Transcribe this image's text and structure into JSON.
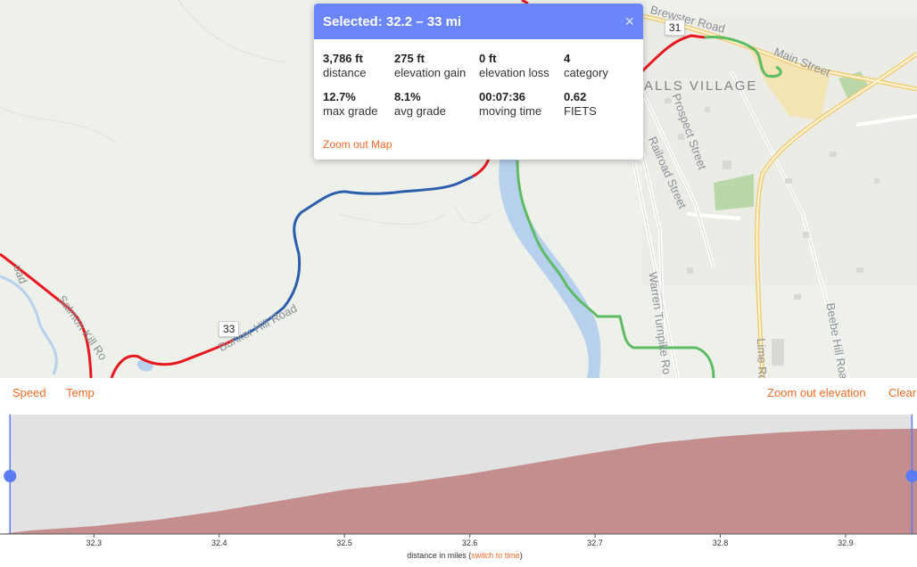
{
  "map": {
    "labels": {
      "town": "ALLS VILLAGE",
      "brewster": "Brewster Road",
      "main": "Main Street",
      "prospect": "Prospect Street",
      "railroad": "Railroad Street",
      "warren": "Warren Turnpike Ro",
      "beebe": "Beebe Hill Roa",
      "lime": "Lime Ro",
      "salmon": "Salmon Kill Ro",
      "bunker": "Bunker Hill Road",
      "road_left": "oad"
    },
    "markers": {
      "start": "31",
      "end": "33"
    }
  },
  "popup": {
    "title": "Selected: 32.2 – 33 mi",
    "close": "×",
    "stats": [
      {
        "value": "3,786 ft",
        "label": "distance"
      },
      {
        "value": "275 ft",
        "label": "elevation gain"
      },
      {
        "value": "0 ft",
        "label": "elevation loss"
      },
      {
        "value": "4",
        "label": "category"
      },
      {
        "value": "12.7%",
        "label": "max grade"
      },
      {
        "value": "8.1%",
        "label": "avg grade"
      },
      {
        "value": "00:07:36",
        "label": "moving time"
      },
      {
        "value": "0.62",
        "label": "FIETS"
      }
    ],
    "zoom_link": "Zoom out Map"
  },
  "toolbar": {
    "speed": "Speed",
    "temp": "Temp",
    "zoom_elevation": "Zoom out elevation",
    "clear": "Clear"
  },
  "chart_data": {
    "type": "area",
    "xlabel_prefix": "distance in miles (",
    "xlabel_link": "switch to time",
    "xlabel_suffix": ")",
    "x_ticks": [
      "32.3",
      "32.4",
      "32.5",
      "32.6",
      "32.7",
      "32.8",
      "32.9"
    ],
    "xlim": [
      32.225,
      32.957
    ],
    "selection": [
      32.233,
      32.953
    ],
    "series": [
      {
        "x": [
          32.225,
          32.25,
          32.3,
          32.35,
          32.4,
          32.45,
          32.5,
          32.55,
          32.6,
          32.65,
          32.7,
          32.75,
          32.8,
          32.85,
          32.9,
          32.957
        ],
        "y": [
          0,
          4,
          9,
          16,
          26,
          38,
          50,
          58,
          68,
          80,
          92,
          103,
          110,
          115,
          118,
          119
        ]
      }
    ],
    "ylim": [
      0,
      135
    ],
    "colors": {
      "area": "#c48e8e",
      "selection_bg": "#e2e2e2",
      "handle": "#5b7bf5"
    }
  }
}
